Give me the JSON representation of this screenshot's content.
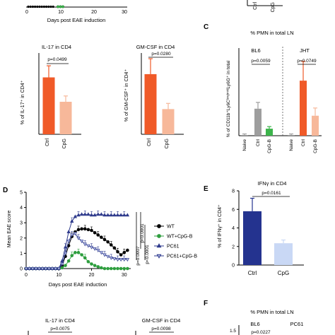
{
  "colors": {
    "ctrl_orange": "#f05a28",
    "cpg_peach": "#f7b89a",
    "naive_grey": "#9e9e9e",
    "cpgb_green": "#3cb44b",
    "wt_black": "#000000",
    "wt_cpgb_green": "#2e9e3e",
    "pc61_navy": "#2e3a8c",
    "pc61_cpgb_light": "#b4bce8",
    "ifn_ctrl_navy": "#24338f",
    "ifn_cpg_lightblue": "#c9d8f5"
  },
  "top_strip": {
    "xlabel": "Days post EAE induction",
    "ticks": [
      "0",
      "10",
      "20",
      "30"
    ],
    "right_ticks": [
      "Ctrl",
      "CpG"
    ]
  },
  "chart_data": [
    {
      "type": "bar",
      "panel": "IL-17",
      "title": "IL-17 in CD4",
      "ylabel": "% of IL-17⁺ in CD4⁺",
      "categories": [
        "Ctrl",
        "CpG"
      ],
      "values": [
        0.49,
        0.28
      ],
      "errors": [
        0.1,
        0.05
      ],
      "ylim": [
        0,
        0.7
      ],
      "pvalue": "p=0.0499"
    },
    {
      "type": "bar",
      "panel": "GM-CSF",
      "title": "GM-CSF in CD4",
      "ylabel": "% of GM-CSF⁺ in CD4⁺",
      "categories": [
        "Ctrl",
        "CpG"
      ],
      "values": [
        0.37,
        0.155
      ],
      "errors": [
        0.095,
        0.035
      ],
      "ylim": [
        0,
        0.5
      ],
      "pvalue": "p=0.0280"
    },
    {
      "type": "bar",
      "panel": "C",
      "title": "% PMN in total LN",
      "ylabel": "% of CD11b⁺Ly6Cˡᵒʷ/ᵐⁱᵈLy6G⁺ in total",
      "groups": [
        "BL6",
        "JHT"
      ],
      "categories": [
        "Naive",
        "Ctrl",
        "CpG-B",
        "Naive",
        "Ctrl",
        "CpG-B"
      ],
      "values": [
        0.02,
        0.77,
        0.2,
        0.02,
        1.57,
        0.57
      ],
      "errors": [
        0.03,
        0.18,
        0.06,
        0.03,
        0.55,
        0.22
      ],
      "ylim": [
        0,
        2.5
      ],
      "pvalues": [
        "p=0.0059",
        "p=0.0749"
      ]
    },
    {
      "type": "line",
      "panel": "D",
      "xlabel": "Days post EAE induction",
      "ylabel": "Mean EAE score",
      "xlim": [
        0,
        32
      ],
      "ylim": [
        0,
        5
      ],
      "xticks": [
        "0",
        "10",
        "20",
        "30"
      ],
      "yticks": [
        "0",
        "1",
        "2",
        "3",
        "4",
        "5"
      ],
      "x": [
        0,
        1,
        2,
        3,
        4,
        5,
        6,
        7,
        8,
        9,
        10,
        11,
        12,
        13,
        14,
        15,
        16,
        17,
        18,
        19,
        20,
        21,
        22,
        23,
        24,
        25,
        26,
        27,
        28,
        29,
        30,
        31
      ],
      "series": [
        {
          "name": "WT",
          "values": [
            0,
            0,
            0,
            0,
            0,
            0,
            0,
            0,
            0,
            0,
            0,
            0.2,
            0.8,
            1.5,
            2.1,
            2.4,
            2.55,
            2.6,
            2.6,
            2.55,
            2.5,
            2.35,
            2.2,
            2.05,
            1.9,
            1.75,
            1.55,
            1.35,
            1.1,
            0.9,
            1.05,
            1.2
          ]
        },
        {
          "name": "WT+CpG-B",
          "values": [
            0,
            0,
            0,
            0,
            0,
            0,
            0,
            0,
            0,
            0,
            0,
            0.05,
            0.2,
            0.5,
            0.85,
            1.05,
            1.05,
            0.9,
            0.7,
            0.45,
            0.3,
            0.2,
            0.12,
            0.05,
            0,
            0,
            0,
            0,
            0,
            0,
            0,
            0
          ]
        },
        {
          "name": "PC61",
          "values": [
            0,
            0,
            0,
            0,
            0,
            0,
            0,
            0,
            0,
            0,
            0,
            0.5,
            1.4,
            2.4,
            3.1,
            3.4,
            3.5,
            3.55,
            3.55,
            3.55,
            3.5,
            3.5,
            3.55,
            3.55,
            3.5,
            3.5,
            3.5,
            3.5,
            3.5,
            3.5,
            3.5,
            3.5
          ]
        },
        {
          "name": "PC61+CpG-B",
          "values": [
            0,
            0,
            0,
            0,
            0,
            0,
            0,
            0,
            0,
            0,
            0,
            0.3,
            1.0,
            1.8,
            2.2,
            2.3,
            2.0,
            1.8,
            1.6,
            1.5,
            1.4,
            1.3,
            1.2,
            1.05,
            0.9,
            0.8,
            0.7,
            0.65,
            0.6,
            0.6,
            0.6,
            0.6
          ]
        }
      ],
      "pvalues": [
        "p<0.0001",
        "p<0.0001",
        "p=0.0007"
      ]
    },
    {
      "type": "bar",
      "panel": "E",
      "title": "IFNγ in CD4",
      "ylabel": "% of IFNγ⁺ in CD4⁺",
      "categories": [
        "Ctrl",
        "CpG"
      ],
      "values": [
        5.8,
        2.35
      ],
      "errors": [
        1.4,
        0.35
      ],
      "ylim": [
        0,
        8
      ],
      "yticks": [
        "0",
        "2",
        "4",
        "6",
        "8"
      ],
      "pvalue": "p=0.0161"
    }
  ],
  "bottom": {
    "il17": {
      "title": "IL-17 in CD4",
      "pvalue": "p=0.0075"
    },
    "gmcsf": {
      "title": "GM-CSF in CD4",
      "pvalue": "p=0.0098"
    },
    "pmn": {
      "title": "% PMN in total LN",
      "g1": "BL6",
      "g2": "PC61",
      "p1": "p=0.0227",
      "ytick": "1.5"
    }
  },
  "panel_letters": {
    "c": "C",
    "d": "D",
    "e": "E",
    "f": "F"
  }
}
